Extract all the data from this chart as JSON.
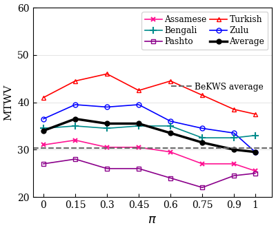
{
  "x": [
    0,
    0.15,
    0.3,
    0.45,
    0.6,
    0.75,
    0.9,
    1.0
  ],
  "assamese": [
    31.0,
    32.0,
    30.5,
    30.5,
    29.5,
    27.0,
    27.0,
    25.5
  ],
  "pashto": [
    27.0,
    28.0,
    26.0,
    26.0,
    24.0,
    22.0,
    24.5,
    25.0
  ],
  "zulu": [
    36.5,
    39.5,
    39.0,
    39.5,
    36.0,
    34.5,
    33.5,
    29.5
  ],
  "bengali": [
    34.5,
    35.0,
    34.5,
    35.0,
    35.0,
    32.5,
    32.5,
    33.0
  ],
  "turkish": [
    41.0,
    44.5,
    46.0,
    42.5,
    44.5,
    41.5,
    38.5,
    37.5
  ],
  "average": [
    34.0,
    36.5,
    35.5,
    35.5,
    33.5,
    31.5,
    30.0,
    29.5
  ],
  "bekws_average": 30.3,
  "xlabel": "$\\pi$",
  "ylabel": "MTWV",
  "ylim": [
    20,
    60
  ],
  "yticks": [
    20,
    30,
    40,
    50,
    60
  ],
  "xticks": [
    0,
    0.15,
    0.3,
    0.45,
    0.6,
    0.75,
    0.9,
    1
  ],
  "xtick_labels": [
    "0",
    "0.15",
    "0.3",
    "0.45",
    "0.6",
    "0.75",
    "0.9",
    "1"
  ],
  "colors": {
    "assamese": "#FF1493",
    "pashto": "#8B008B",
    "zulu": "#0000FF",
    "bengali": "#008B8B",
    "turkish": "#FF0000",
    "average": "#000000",
    "bekws": "#696969"
  },
  "figsize": [
    4.0,
    3.34
  ],
  "dpi": 100
}
